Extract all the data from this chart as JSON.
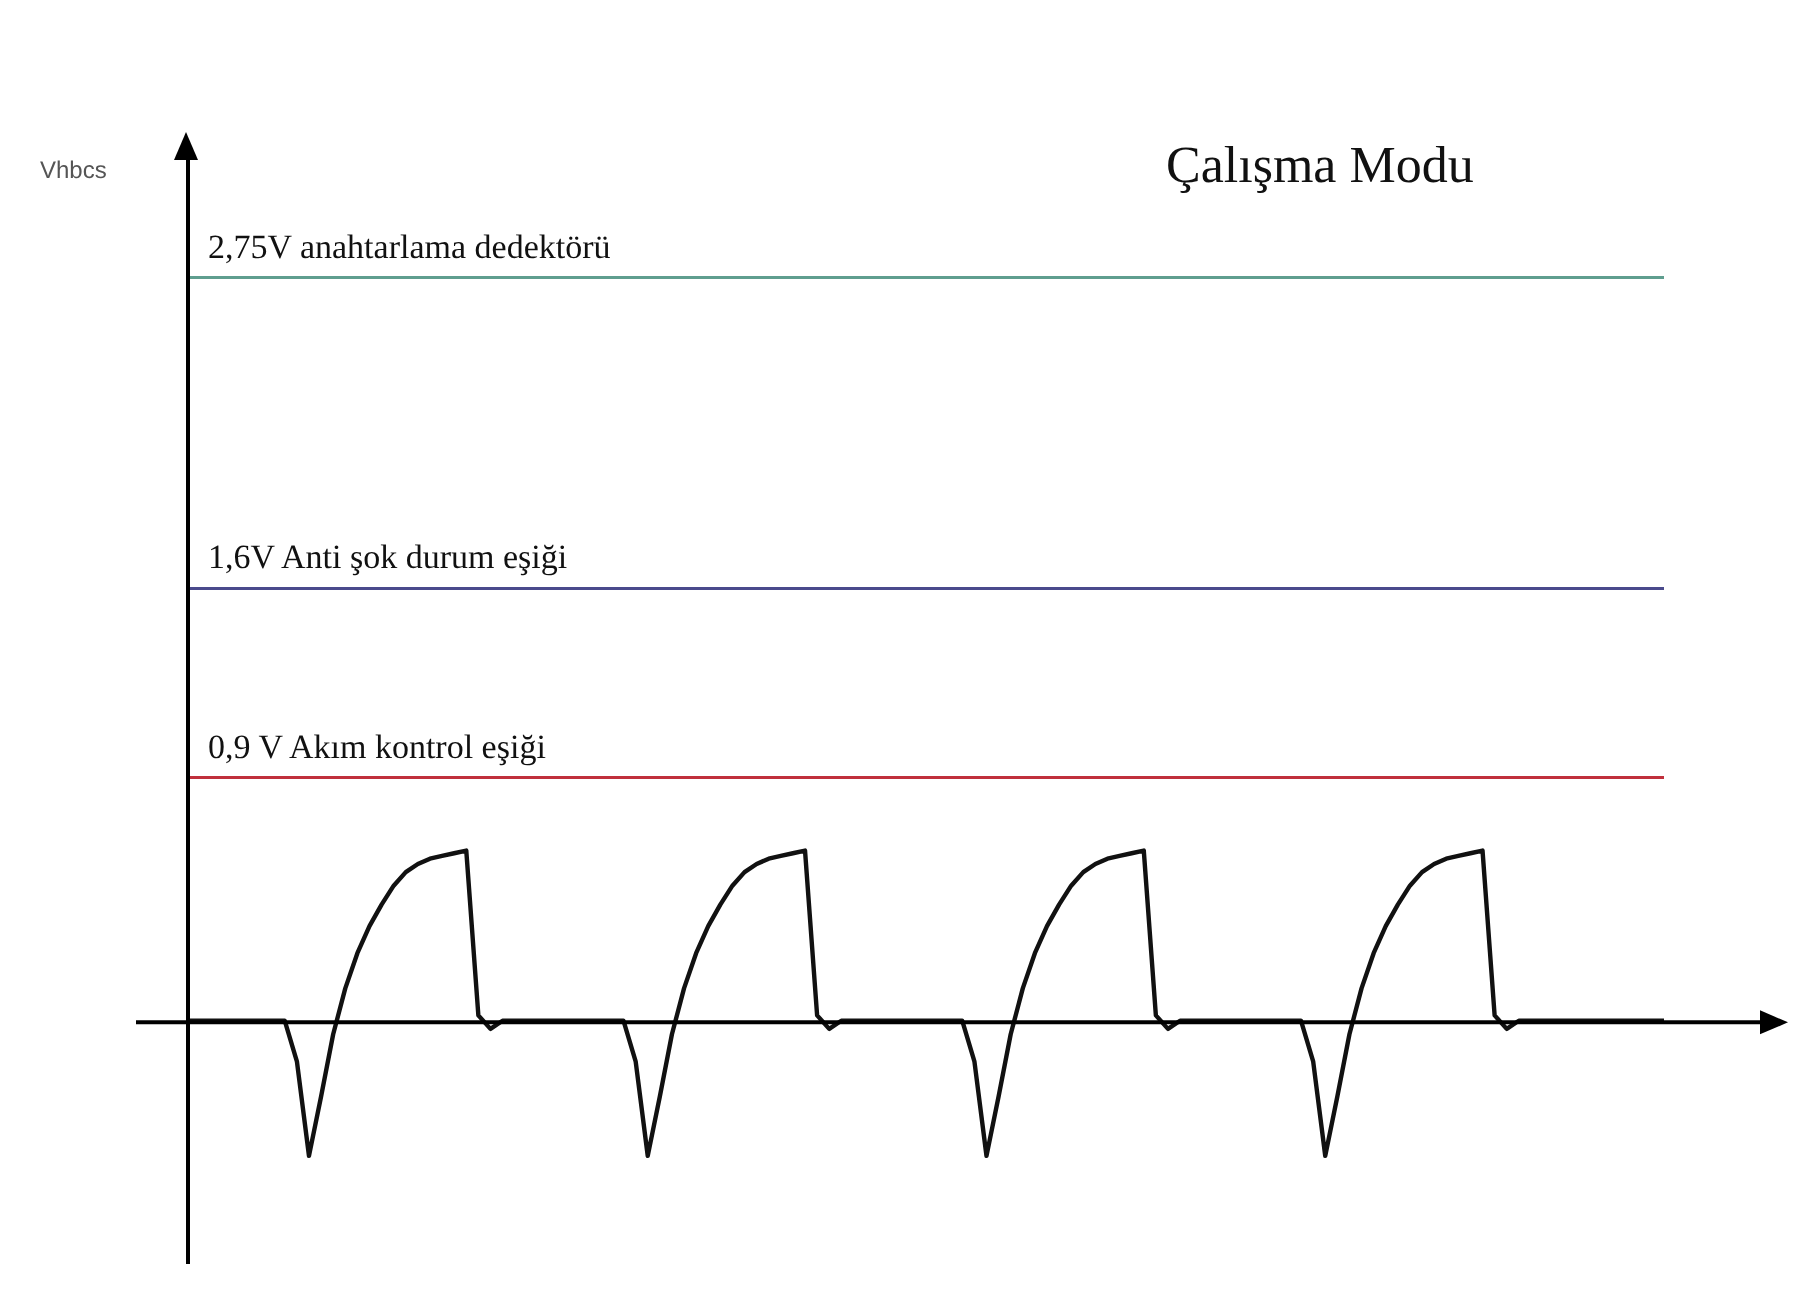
{
  "chart_data": {
    "type": "line",
    "title": "Çalışma Modu",
    "ylabel": "Vhbcs",
    "relative": false,
    "categories": [
      null,
      null,
      null,
      null,
      null,
      null,
      null,
      null,
      null,
      null,
      null,
      null,
      null,
      null,
      null,
      null,
      null,
      null,
      null,
      null,
      null,
      null,
      null,
      null,
      null,
      null,
      null,
      null,
      null,
      null,
      null,
      null,
      null,
      null,
      null,
      null,
      null,
      null,
      null,
      null,
      null,
      null,
      null,
      null,
      null,
      null,
      null,
      null,
      null,
      null,
      null,
      null,
      null,
      null,
      null,
      null,
      null,
      null,
      null,
      null,
      null,
      null,
      null,
      null,
      null,
      null,
      null,
      null,
      null,
      null,
      null,
      null,
      null,
      null,
      null,
      null,
      null,
      null,
      null,
      null,
      null,
      null,
      null,
      null,
      null,
      null,
      null,
      null,
      null,
      null,
      null,
      null,
      null,
      null,
      null,
      null,
      null,
      null,
      null,
      null,
      null,
      null,
      null,
      null,
      null,
      null,
      null,
      null,
      null,
      null,
      null,
      null,
      null,
      null,
      null,
      null,
      null,
      null,
      null,
      null,
      null,
      null,
      null
    ],
    "series": [
      {
        "color": "#111111",
        "values": [
          0,
          0,
          0,
          0,
          0,
          0,
          0,
          0,
          0,
          -0.15,
          -0.5,
          -0.28,
          -0.05,
          0.12,
          0.25,
          0.35,
          0.43,
          0.5,
          0.55,
          0.58,
          0.6,
          0.61,
          0.62,
          0.63,
          0.02,
          -0.03,
          0,
          0,
          0,
          0,
          0,
          0,
          0,
          0,
          0,
          0,
          0,
          -0.15,
          -0.5,
          -0.28,
          -0.05,
          0.12,
          0.25,
          0.35,
          0.43,
          0.5,
          0.55,
          0.58,
          0.6,
          0.61,
          0.62,
          0.63,
          0.02,
          -0.03,
          0,
          0,
          0,
          0,
          0,
          0,
          0,
          0,
          0,
          0,
          0,
          -0.15,
          -0.5,
          -0.28,
          -0.05,
          0.12,
          0.25,
          0.35,
          0.43,
          0.5,
          0.55,
          0.58,
          0.6,
          0.61,
          0.62,
          0.63,
          0.02,
          -0.03,
          0,
          0,
          0,
          0,
          0,
          0,
          0,
          0,
          0,
          0,
          0,
          -0.15,
          -0.5,
          -0.28,
          -0.05,
          0.12,
          0.25,
          0.35,
          0.43,
          0.5,
          0.55,
          0.58,
          0.6,
          0.61,
          0.62,
          0.63,
          0.02,
          -0.03,
          0,
          0,
          0,
          0,
          0,
          0,
          0,
          0,
          0,
          0,
          0,
          0,
          0
        ]
      }
    ],
    "ylim": [
      -0.9,
      3.2
    ],
    "tick_labels": false,
    "marker": "none",
    "line_style": "solid",
    "ref_lines": [
      {
        "axis": "y",
        "value": 2.75,
        "label": "2,75V anahtarlama dedektörü",
        "color": "#5f9e8f"
      },
      {
        "axis": "y",
        "value": 1.6,
        "label": "1,6V Anti şok durum eşiği",
        "color": "#4a4a8c"
      },
      {
        "axis": "y",
        "value": 0.9,
        "label": "0,9 V Akım kontrol eşiği",
        "color": "#c0303c"
      }
    ]
  }
}
